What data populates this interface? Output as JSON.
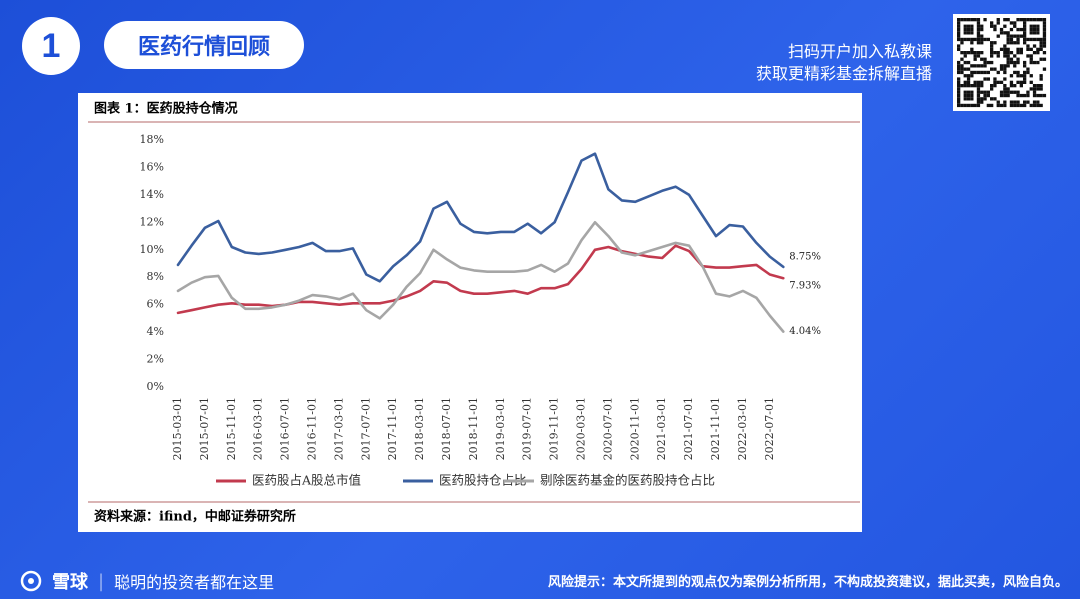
{
  "section": {
    "number": "1",
    "title": "医药行情回顾"
  },
  "promo": [
    "扫码开户加入私教课",
    "获取更精彩基金拆解直播"
  ],
  "footer": {
    "brand": "雪球",
    "slogan": "聪明的投资者都在这里",
    "risk": "风险提示：本文所提到的观点仅为案例分析所用，不构成投资建议，据此买卖，风险自负。"
  },
  "chart_data": {
    "type": "line",
    "title": "图表 1：医药股持仓情况",
    "source": "资料来源：ifind，中邮证券研究所",
    "categories": [
      "2015-03-01",
      null,
      "2015-07-01",
      null,
      "2015-11-01",
      null,
      "2016-03-01",
      null,
      "2016-07-01",
      null,
      "2016-11-01",
      null,
      "2017-03-01",
      null,
      "2017-07-01",
      null,
      "2017-11-01",
      null,
      "2018-03-01",
      null,
      "2018-07-01",
      null,
      "2018-11-01",
      null,
      "2019-03-01",
      null,
      "2019-07-01",
      null,
      "2019-11-01",
      null,
      "2020-03-01",
      null,
      "2020-07-01",
      null,
      "2020-11-01",
      null,
      "2021-03-01",
      null,
      "2021-07-01",
      null,
      "2021-11-01",
      null,
      "2022-03-01",
      null,
      "2022-07-01",
      null
    ],
    "ylim": [
      0,
      18
    ],
    "yticks": [
      {
        "value": 0,
        "label": "0%"
      },
      {
        "value": 2,
        "label": "2%"
      },
      {
        "value": 4,
        "label": "4%"
      },
      {
        "value": 6,
        "label": "6%"
      },
      {
        "value": 8,
        "label": "8%"
      },
      {
        "value": 10,
        "label": "10%"
      },
      {
        "value": 12,
        "label": "12%"
      },
      {
        "value": 14,
        "label": "14%"
      },
      {
        "value": 16,
        "label": "16%"
      },
      {
        "value": 18,
        "label": "18%"
      }
    ],
    "grid": false,
    "legend": "bottom",
    "series": [
      {
        "name": "医药股占A股总市值",
        "color": "#c23a4e",
        "values": [
          5.4,
          5.6,
          5.8,
          6.0,
          6.1,
          6.0,
          6.0,
          5.9,
          6.0,
          6.2,
          6.2,
          6.1,
          6.0,
          6.1,
          6.1,
          6.1,
          6.3,
          6.6,
          7.0,
          7.7,
          7.6,
          7.0,
          6.8,
          6.8,
          6.9,
          7.0,
          6.8,
          7.2,
          7.2,
          7.5,
          8.6,
          10.0,
          10.2,
          9.9,
          9.7,
          9.5,
          9.4,
          10.3,
          9.9,
          8.8,
          8.7,
          8.7,
          8.8,
          8.9,
          8.2,
          7.93
        ],
        "value_labels": [
          null,
          null,
          null,
          null,
          null,
          null,
          null,
          null,
          null,
          null,
          null,
          null,
          null,
          null,
          null,
          null,
          null,
          null,
          null,
          null,
          null,
          null,
          null,
          null,
          null,
          null,
          null,
          null,
          null,
          null,
          null,
          null,
          null,
          null,
          null,
          null,
          null,
          null,
          null,
          null,
          null,
          null,
          null,
          null,
          null,
          "7.93%"
        ]
      },
      {
        "name": "医药股持仓占比",
        "color": "#3a5f9f",
        "values": [
          8.9,
          10.3,
          11.6,
          12.1,
          10.2,
          9.8,
          9.7,
          9.8,
          10.0,
          10.2,
          10.5,
          9.9,
          9.9,
          10.1,
          8.2,
          7.7,
          8.8,
          9.6,
          10.6,
          13.0,
          13.5,
          11.9,
          11.3,
          11.2,
          11.3,
          11.3,
          11.9,
          11.2,
          12.0,
          14.2,
          16.5,
          17.0,
          14.4,
          13.6,
          13.5,
          13.9,
          14.3,
          14.6,
          14.0,
          12.5,
          11.0,
          11.8,
          11.7,
          10.5,
          9.5,
          8.75
        ],
        "value_labels": [
          null,
          null,
          null,
          null,
          null,
          null,
          null,
          null,
          null,
          null,
          null,
          null,
          null,
          null,
          null,
          null,
          null,
          null,
          null,
          null,
          null,
          null,
          null,
          null,
          null,
          null,
          null,
          null,
          null,
          null,
          null,
          null,
          null,
          null,
          null,
          null,
          null,
          null,
          null,
          null,
          null,
          null,
          null,
          null,
          null,
          "8.75%"
        ]
      },
      {
        "name": "剔除医药基金的医药股持仓占比",
        "color": "#a6a6a6",
        "values": [
          7.0,
          7.6,
          8.0,
          8.1,
          6.5,
          5.7,
          5.7,
          5.8,
          6.0,
          6.3,
          6.7,
          6.6,
          6.4,
          6.8,
          5.6,
          5.0,
          6.0,
          7.3,
          8.3,
          10.0,
          9.3,
          8.7,
          8.5,
          8.4,
          8.4,
          8.4,
          8.5,
          8.9,
          8.4,
          9.0,
          10.7,
          12.0,
          11.0,
          9.8,
          9.6,
          9.9,
          10.2,
          10.5,
          10.3,
          8.8,
          6.8,
          6.6,
          7.0,
          6.5,
          5.2,
          4.04
        ],
        "value_labels": [
          null,
          null,
          null,
          null,
          null,
          null,
          null,
          null,
          null,
          null,
          null,
          null,
          null,
          null,
          null,
          null,
          null,
          null,
          null,
          null,
          null,
          null,
          null,
          null,
          null,
          null,
          null,
          null,
          null,
          null,
          null,
          null,
          null,
          null,
          null,
          null,
          null,
          null,
          null,
          null,
          null,
          null,
          null,
          null,
          null,
          "4.04%"
        ]
      }
    ]
  }
}
